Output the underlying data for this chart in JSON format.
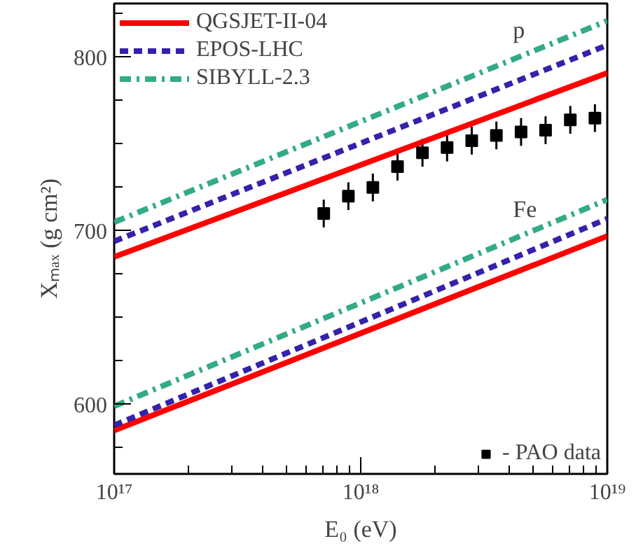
{
  "chart_data": {
    "type": "line",
    "xlabel": "E₀ (eV)",
    "ylabel": "Xₘₐₓ (g cm²)",
    "log": "x",
    "xlim": [
      1e+17,
      1e+19
    ],
    "ylim": [
      560,
      831
    ],
    "xticks": [
      {
        "value": 1e+17,
        "label": "10¹⁷"
      },
      {
        "value": 1e+18,
        "label": "10¹⁸"
      },
      {
        "value": 1e+19,
        "label": "10¹⁹"
      }
    ],
    "yticks": [
      600,
      700,
      800
    ],
    "grid": false,
    "legend": [
      "top left",
      "bottom right"
    ],
    "series": [
      {
        "name": "QGSJET-II-04",
        "color": "#ff0000",
        "line_style": "solid",
        "x": [
          1e+17,
          1e+19
        ],
        "values": [
          685,
          791
        ]
      },
      {
        "name": "EPOS-LHC",
        "color": "#3322aa",
        "line_style": "dashed",
        "x": [
          1e+17,
          1e+19
        ],
        "values": [
          694,
          807
        ]
      },
      {
        "name": "SIBYLL-2.3",
        "color": "#33aa88",
        "line_style": "dashdot",
        "x": [
          1e+17,
          1e+19
        ],
        "values": [
          705,
          821
        ]
      },
      {
        "color": "#ff0000",
        "line_style": "solid",
        "x": [
          1e+17,
          1e+19
        ],
        "values": [
          585,
          697
        ]
      },
      {
        "color": "#3322aa",
        "line_style": "dashed",
        "x": [
          1e+17,
          1e+19
        ],
        "values": [
          588,
          707
        ]
      },
      {
        "color": "#33aa88",
        "line_style": "dashdot",
        "x": [
          1e+17,
          1e+19
        ],
        "values": [
          599,
          718
        ]
      },
      {
        "name": "- PAO data",
        "type": "scatter",
        "marker": "square",
        "color": "#000000",
        "x": [
          7.08e+17,
          8.91e+17,
          1.12e+18,
          1.41e+18,
          1.78e+18,
          2.24e+18,
          2.82e+18,
          3.55e+18,
          4.47e+18,
          5.62e+18,
          7.08e+18,
          8.91e+18
        ],
        "values": [
          710,
          720,
          725,
          737,
          745,
          748,
          752,
          755,
          757,
          758,
          764,
          765
        ],
        "errors": [
          8,
          8,
          8,
          8,
          8,
          8,
          8,
          8,
          8,
          8,
          8,
          8
        ]
      }
    ],
    "annotations": [
      "p",
      "Fe"
    ]
  }
}
